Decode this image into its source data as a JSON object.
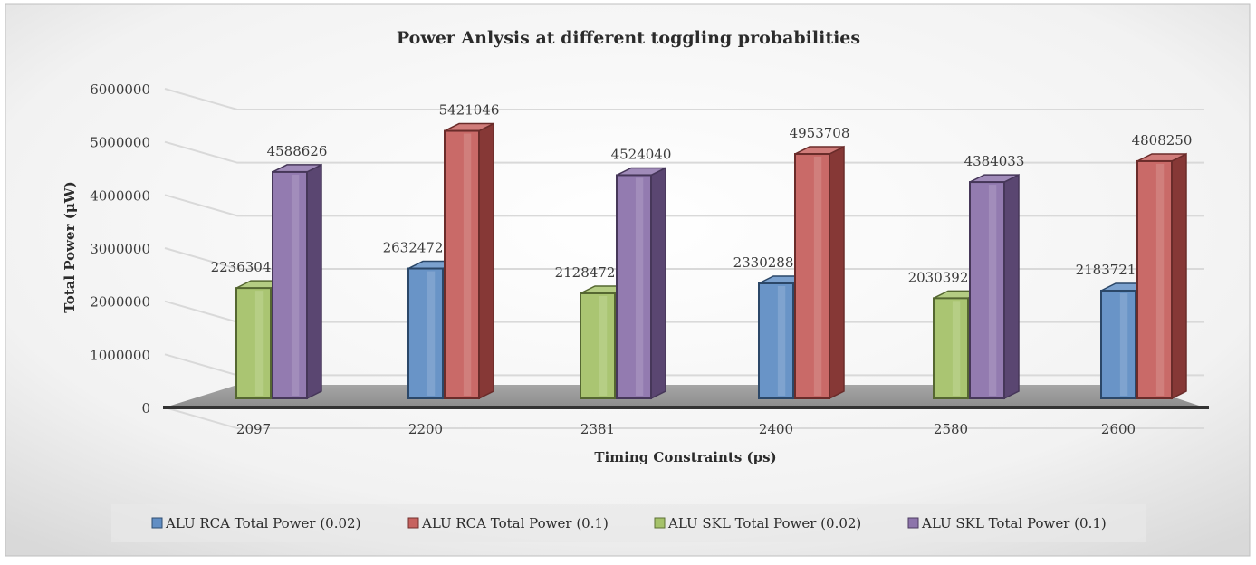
{
  "chart_data": {
    "type": "bar",
    "title": "Power Anlysis at different toggling probabilities",
    "xlabel": "Timing Constraints (ps)",
    "ylabel": "Total Power (μW)",
    "ylim": [
      0,
      6000000
    ],
    "yticks": [
      "0",
      "1000000",
      "2000000",
      "3000000",
      "4000000",
      "5000000",
      "6000000"
    ],
    "categories": [
      "2097",
      "2200",
      "2381",
      "2400",
      "2580",
      "2600"
    ],
    "series": [
      {
        "name": "ALU RCA Total Power (0.02)",
        "color": "#4f81bd",
        "values": [
          null,
          2632472,
          null,
          2330288,
          null,
          2183721
        ]
      },
      {
        "name": "ALU RCA Total Power (0.1)",
        "color": "#c0504d",
        "values": [
          null,
          5421046,
          null,
          4953708,
          null,
          4808250
        ]
      },
      {
        "name": "ALU SKL Total Power (0.02)",
        "color": "#9bbb59",
        "values": [
          2236304,
          null,
          2128472,
          null,
          2030392,
          null
        ]
      },
      {
        "name": "ALU SKL Total Power (0.1)",
        "color": "#8064a2",
        "values": [
          4588626,
          null,
          4524040,
          null,
          4384033,
          null
        ]
      }
    ],
    "grid": true,
    "legend_position": "bottom",
    "style": "3d-clustered-column"
  }
}
